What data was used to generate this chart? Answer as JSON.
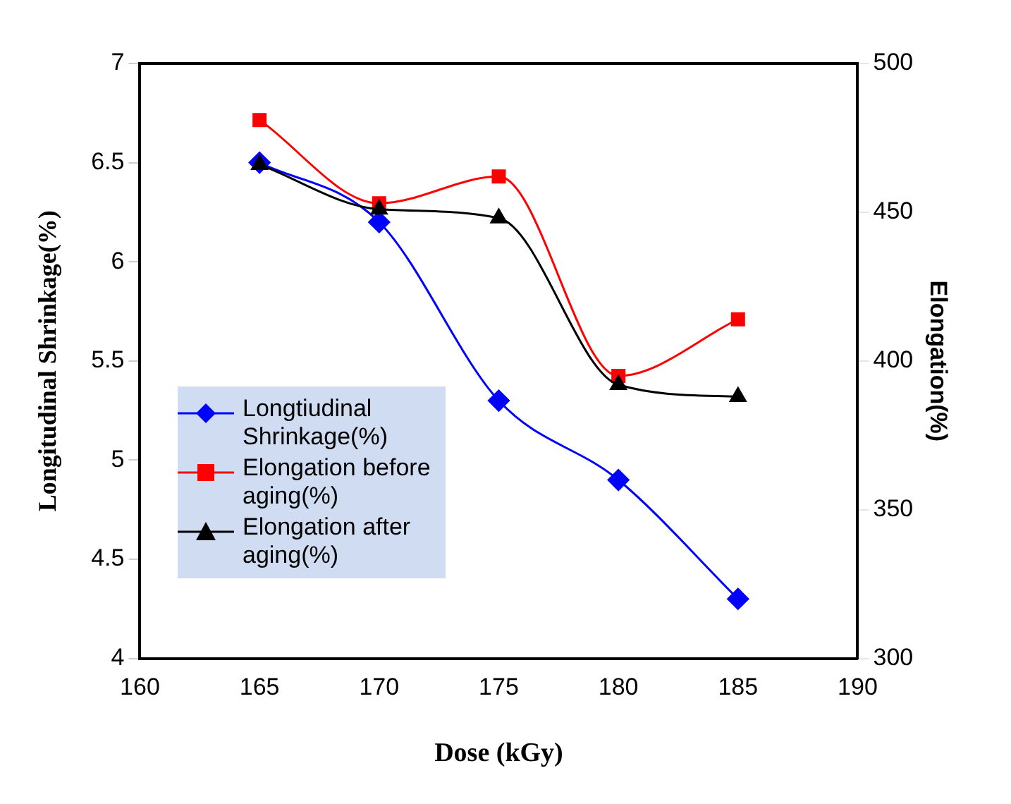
{
  "chart_data": {
    "type": "line",
    "xlabel": "Dose (kGy)",
    "ylabel": "Longitudinal Shrinkage(%)",
    "y2label": "Elongation(%)",
    "x": [
      165,
      170,
      175,
      180,
      185
    ],
    "xlim": [
      160,
      190
    ],
    "xticks": [
      160,
      165,
      170,
      175,
      180,
      185,
      190
    ],
    "ylim": [
      4,
      7
    ],
    "yticks": [
      4,
      4.5,
      5,
      5.5,
      6,
      6.5,
      7
    ],
    "y2lim": [
      300,
      500
    ],
    "y2ticks": [
      300,
      350,
      400,
      450,
      500
    ],
    "legend": "bottom left",
    "grid": false,
    "series": [
      {
        "name": "Longtiudinal Shrinkage(%)",
        "color": "#0000ff",
        "marker": "diamond",
        "values": [
          6.5,
          6.2,
          5.3,
          4.9,
          4.3
        ]
      },
      {
        "name": "Elongation before aging(%)",
        "color": "#ff0000",
        "marker": "square",
        "axis": "y2",
        "values": [
          481,
          453,
          462,
          395,
          414
        ]
      },
      {
        "name": "Elongation after aging(%)",
        "color": "#000000",
        "marker": "triangle",
        "axis": "y2",
        "values": [
          466,
          451,
          448,
          392,
          388
        ]
      }
    ]
  }
}
